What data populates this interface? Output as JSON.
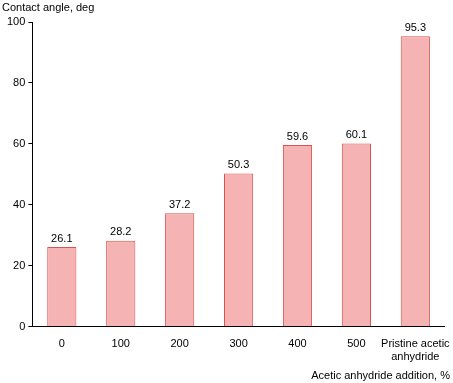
{
  "chart_data": {
    "type": "bar",
    "y_label": "Contact angle, deg",
    "x_label": "Acetic anhydride addition, %",
    "categories": [
      "0",
      "100",
      "200",
      "300",
      "400",
      "500",
      "Pristine acetic anhydride"
    ],
    "values": [
      26.1,
      28.2,
      37.2,
      50.3,
      59.6,
      60.1,
      95.3
    ],
    "color": "#f5b3b3",
    "ylim": [
      0,
      100
    ],
    "yticks": [
      0,
      20,
      40,
      60,
      80,
      100
    ],
    "grid": false,
    "data_labels": true
  }
}
